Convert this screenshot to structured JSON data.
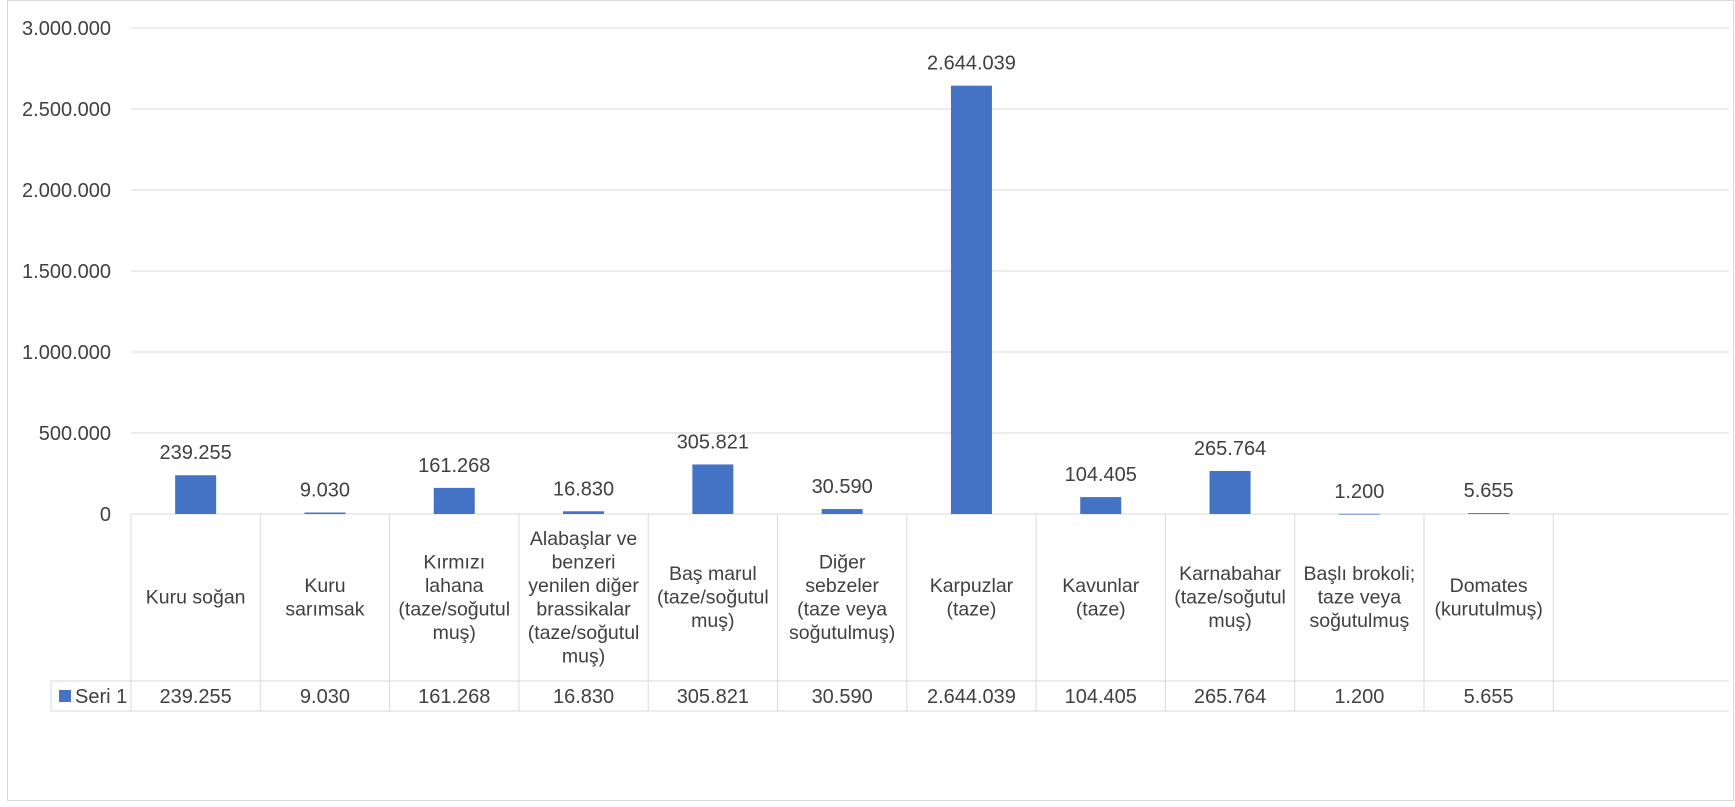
{
  "chart_data": {
    "type": "bar",
    "categories": [
      "Kuru soğan",
      "Kuru sarımsak",
      "Kırmızı lahana (taze/soğutulmuş)",
      "Alabaşlar ve benzeri yenilen diğer brassikalar (taze/soğutulmuş)",
      "Baş marul (taze/soğutulmuş)",
      "Diğer sebzeler (taze veya soğutulmuş)",
      "Karpuzlar (taze)",
      "Kavunlar (taze)",
      "Karnabahar (taze/soğutulmuş)",
      "Başlı brokoli; taze veya soğutulmuş",
      "Domates (kurutulmuş)"
    ],
    "category_lines": [
      [
        "Kuru soğan"
      ],
      [
        "Kuru",
        "sarımsak"
      ],
      [
        "Kırmızı",
        "lahana",
        "(taze/soğutul",
        "muş)"
      ],
      [
        "Alabaşlar ve",
        "benzeri",
        "yenilen diğer",
        "brassikalar",
        "(taze/soğutul",
        "muş)"
      ],
      [
        "Baş marul",
        "(taze/soğutul",
        "muş)"
      ],
      [
        "Diğer",
        "sebzeler",
        "(taze veya",
        "soğutulmuş)"
      ],
      [
        "Karpuzlar",
        "(taze)"
      ],
      [
        "Kavunlar",
        "(taze)"
      ],
      [
        "Karnabahar",
        "(taze/soğutul",
        "muş)"
      ],
      [
        "Başlı brokoli;",
        "taze veya",
        "soğutulmuş"
      ],
      [
        "Domates",
        "(kurutulmuş)"
      ]
    ],
    "series": [
      {
        "name": "Seri 1",
        "color": "#4472c4",
        "values": [
          239255,
          9030,
          161268,
          16830,
          305821,
          30590,
          2644039,
          104405,
          265764,
          1200,
          5655
        ],
        "labels": [
          "239.255",
          "9.030",
          "161.268",
          "16.830",
          "305.821",
          "30.590",
          "2.644.039",
          "104.405",
          "265.764",
          "1.200",
          "5.655"
        ]
      }
    ],
    "ylim": [
      0,
      3000000
    ],
    "yticks": [
      0,
      500000,
      1000000,
      1500000,
      2000000,
      2500000,
      3000000
    ],
    "ytick_labels": [
      "0",
      "500.000",
      "1.000.000",
      "1.500.000",
      "2.000.000",
      "2.500.000",
      "3.000.000"
    ],
    "grid": true,
    "data_table": true,
    "legend_in_table": true,
    "title": "",
    "xlabel": "",
    "ylabel": ""
  }
}
